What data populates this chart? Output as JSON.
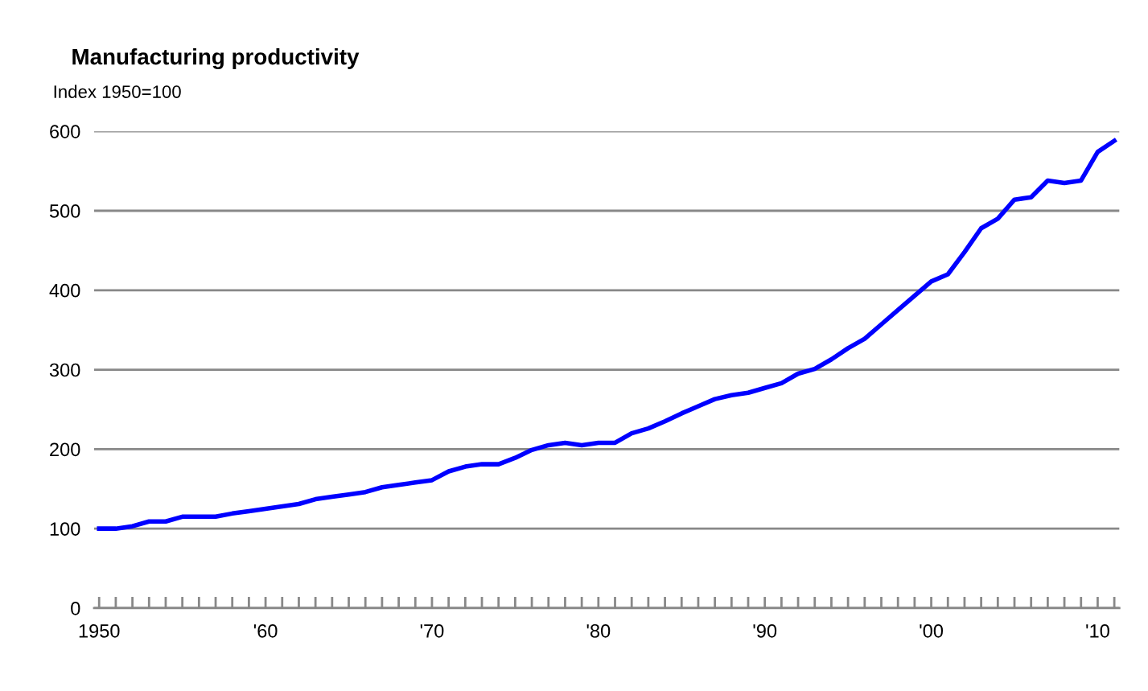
{
  "chart_data": {
    "type": "line",
    "title": "Manufacturing productivity",
    "ylabel": "Index 1950=100",
    "x": [
      1950,
      1951,
      1952,
      1953,
      1954,
      1955,
      1956,
      1957,
      1958,
      1959,
      1960,
      1961,
      1962,
      1963,
      1964,
      1965,
      1966,
      1967,
      1968,
      1969,
      1970,
      1971,
      1972,
      1973,
      1974,
      1975,
      1976,
      1977,
      1978,
      1979,
      1980,
      1981,
      1982,
      1983,
      1984,
      1985,
      1986,
      1987,
      1988,
      1989,
      1990,
      1991,
      1992,
      1993,
      1994,
      1995,
      1996,
      1997,
      1998,
      1999,
      2000,
      2001,
      2002,
      2003,
      2004,
      2005,
      2006,
      2007,
      2008,
      2009,
      2010,
      2011
    ],
    "series": [
      {
        "color": "#0000ff",
        "values": [
          100,
          100,
          103,
          109,
          109,
          115,
          115,
          115,
          119,
          122,
          125,
          128,
          131,
          137,
          140,
          143,
          146,
          152,
          155,
          158,
          161,
          172,
          178,
          181,
          181,
          189,
          199,
          205,
          208,
          205,
          208,
          208,
          220,
          226,
          235,
          245,
          254,
          263,
          268,
          271,
          277,
          283,
          295,
          301,
          313,
          327,
          339,
          357,
          375,
          393,
          411,
          420,
          448,
          478,
          490,
          514,
          517,
          538,
          535,
          538,
          574,
          588
        ]
      }
    ],
    "xlim": [
      1949.7,
      2011.3
    ],
    "xticks": [
      {
        "value": 1950,
        "label": "1950"
      },
      {
        "value": 1960,
        "label": "'60"
      },
      {
        "value": 1970,
        "label": "'70"
      },
      {
        "value": 1980,
        "label": "'80"
      },
      {
        "value": 1990,
        "label": "'90"
      },
      {
        "value": 2000,
        "label": "'00"
      },
      {
        "value": 2010,
        "label": "'10"
      }
    ],
    "ylim": [
      0,
      600
    ],
    "yticks": [
      0,
      100,
      200,
      300,
      400,
      500,
      600
    ],
    "grid": "y",
    "legend": false,
    "marker": "none",
    "line_style": "solid"
  }
}
